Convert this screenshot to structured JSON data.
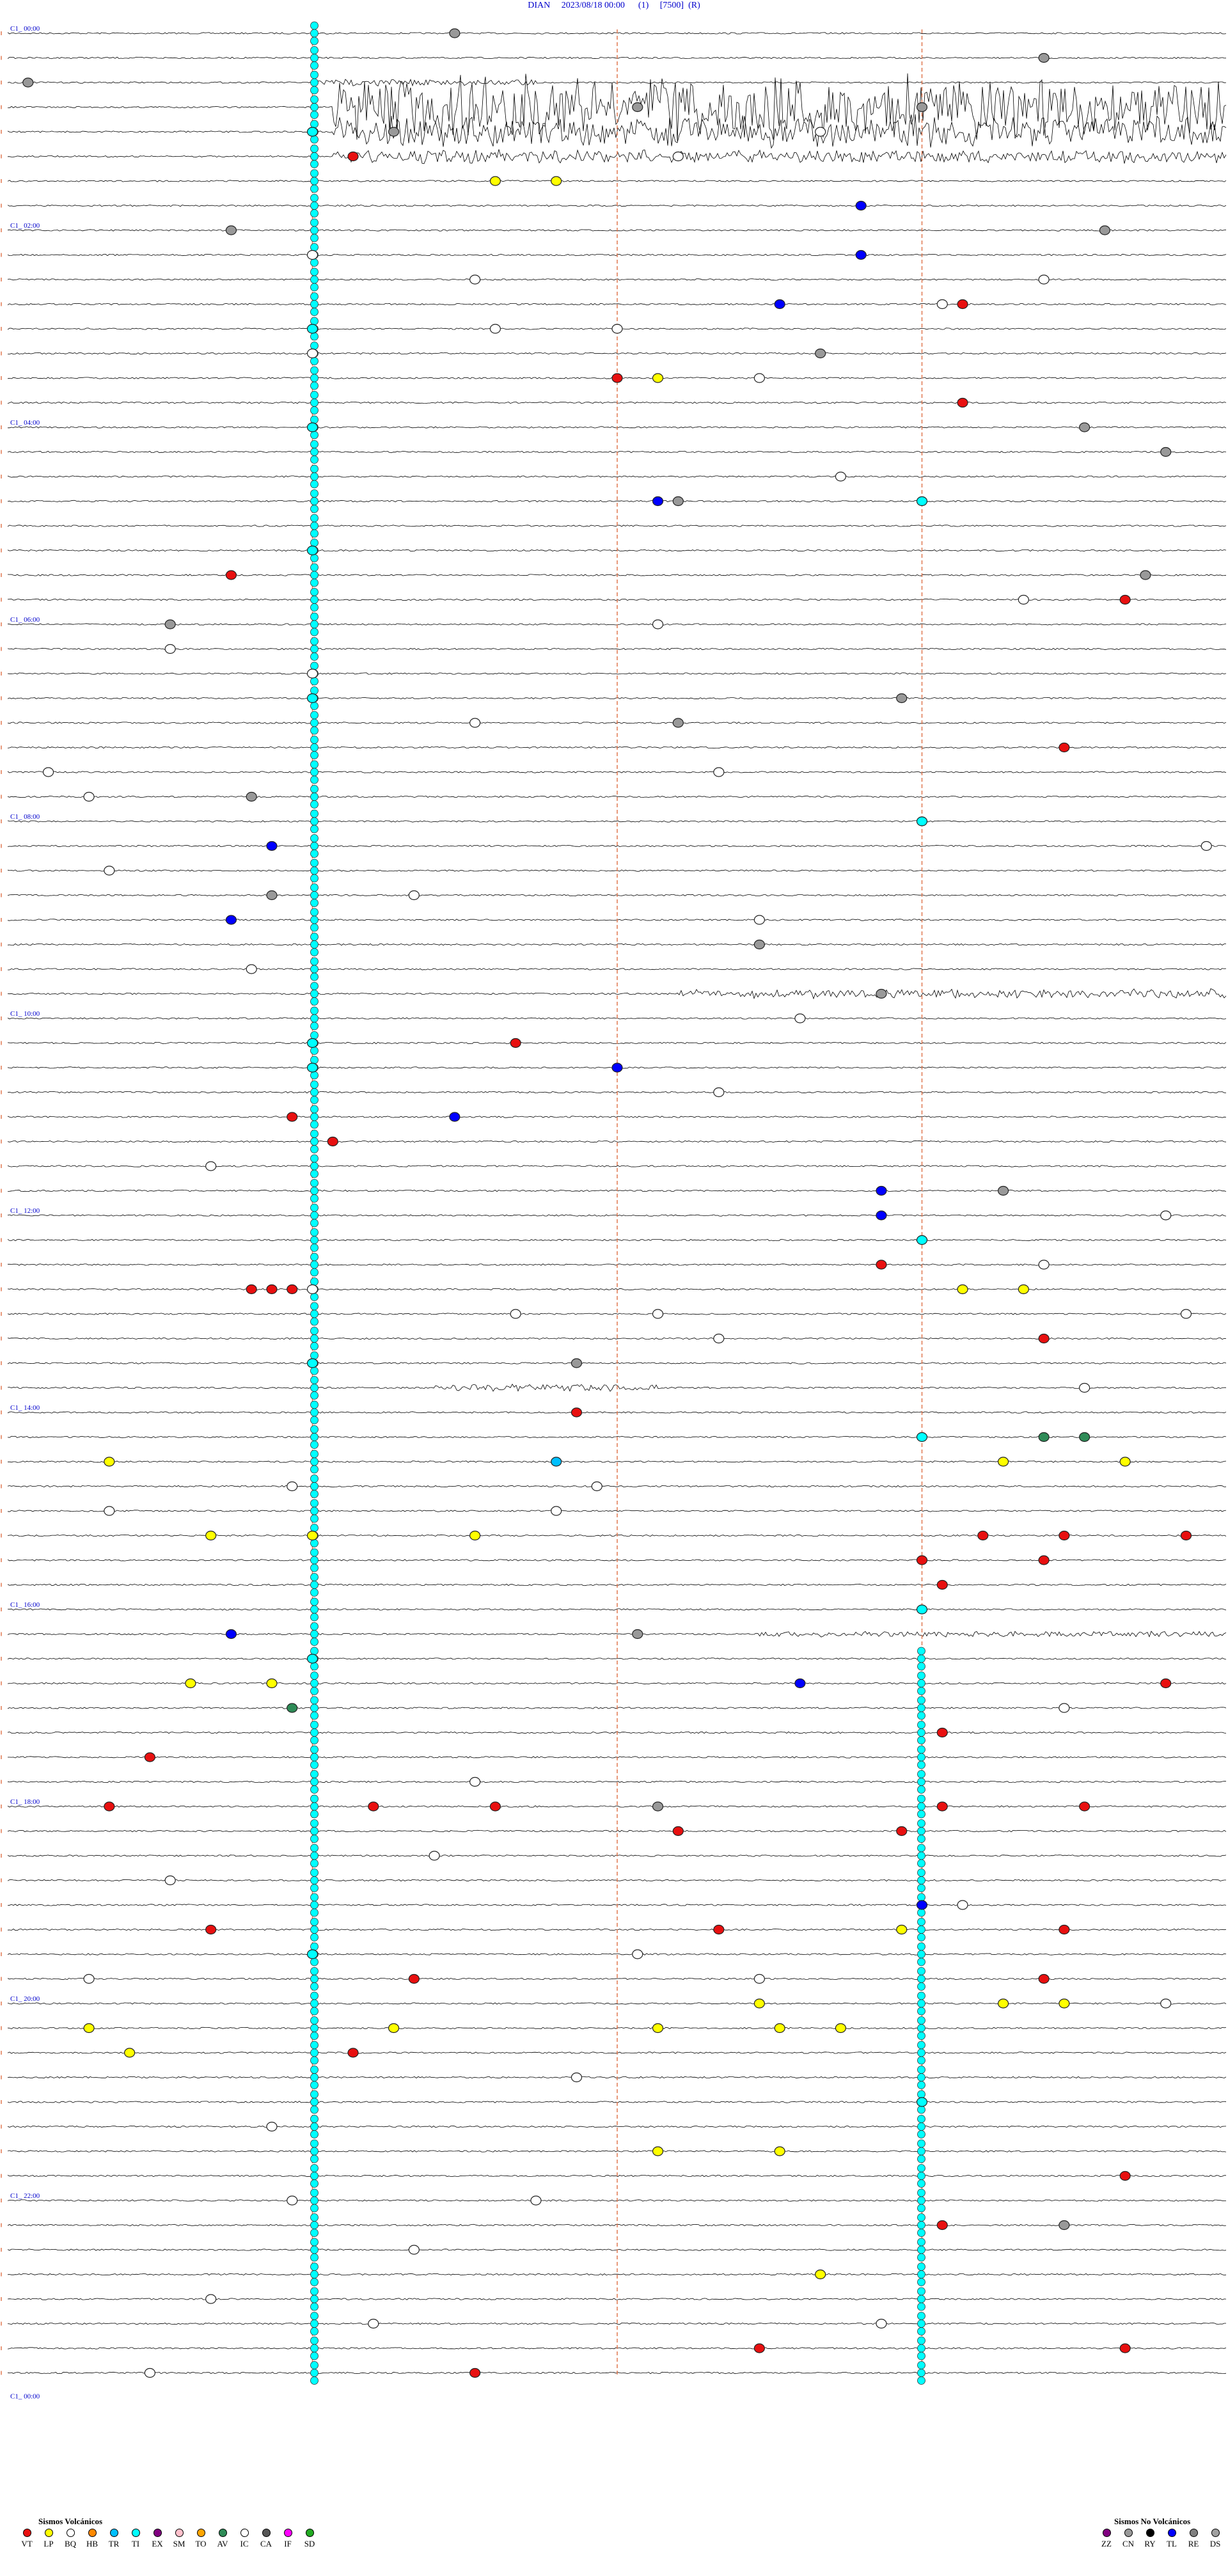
{
  "header": {
    "station": "DIAN",
    "datetime": "2023/08/18 00:00",
    "component": "(1)",
    "gain": "[7500]",
    "mode": "(R)"
  },
  "chart_data": {
    "type": "helicorder",
    "time_labels": [
      "00:00",
      "02:00",
      "04:00",
      "06:00",
      "08:00",
      "10:00",
      "12:00",
      "14:00",
      "16:00",
      "18:00",
      "20:00",
      "22:00",
      "00:00"
    ],
    "trace_rows": 96,
    "minute_markers": [
      15,
      30,
      45
    ],
    "colors": {
      "trace": "#000000",
      "marker_line": "#e07850",
      "label": "#0000cc",
      "events": {
        "VT": "#e81010",
        "LP": "#ffff00",
        "BQ": "#ffffff",
        "HB": "#ff8800",
        "TR": "#00bfff",
        "TI": "#00ffff",
        "EX": "#800080",
        "SM": "#ffc0cb",
        "TO": "#ffa500",
        "AV": "#2e8b57",
        "IC": "#ffffff",
        "CA": "#555555",
        "IF": "#ff00ff",
        "SD": "#22aa22",
        "ZZ": "#800080",
        "CN": "#999999",
        "RY": "#000000",
        "TL": "#0000ff",
        "RE": "#808080",
        "DS": "#a0a0a0"
      }
    },
    "events": [
      {
        "row": 0,
        "min": 22,
        "type": "CN"
      },
      {
        "row": 1,
        "min": 51,
        "type": "CN"
      },
      {
        "row": 2,
        "min": 1,
        "type": "CN"
      },
      {
        "row": 3,
        "min": 31,
        "type": "CN"
      },
      {
        "row": 3,
        "min": 45,
        "type": "CN"
      },
      {
        "row": 4,
        "min": 15,
        "type": "TI"
      },
      {
        "row": 4,
        "min": 19,
        "type": "CN"
      },
      {
        "row": 4,
        "min": 40,
        "type": "BQ"
      },
      {
        "row": 5,
        "min": 17,
        "type": "VT"
      },
      {
        "row": 5,
        "min": 33,
        "type": "BQ"
      },
      {
        "row": 6,
        "min": 24,
        "type": "LP"
      },
      {
        "row": 6,
        "min": 27,
        "type": "LP"
      },
      {
        "row": 7,
        "min": 42,
        "type": "TL"
      },
      {
        "row": 8,
        "min": 11,
        "type": "CN"
      },
      {
        "row": 8,
        "min": 54,
        "type": "CN"
      },
      {
        "row": 9,
        "min": 15,
        "type": "BQ"
      },
      {
        "row": 9,
        "min": 42,
        "type": "TL"
      },
      {
        "row": 10,
        "min": 23,
        "type": "BQ"
      },
      {
        "row": 10,
        "min": 51,
        "type": "BQ"
      },
      {
        "row": 11,
        "min": 38,
        "type": "TL"
      },
      {
        "row": 11,
        "min": 46,
        "type": "BQ"
      },
      {
        "row": 11,
        "min": 47,
        "type": "VT"
      },
      {
        "row": 12,
        "min": 15,
        "type": "TI"
      },
      {
        "row": 12,
        "min": 24,
        "type": "BQ"
      },
      {
        "row": 12,
        "min": 30,
        "type": "BQ"
      },
      {
        "row": 13,
        "min": 15,
        "type": "BQ"
      },
      {
        "row": 13,
        "min": 40,
        "type": "CN"
      },
      {
        "row": 14,
        "min": 30,
        "type": "VT"
      },
      {
        "row": 14,
        "min": 32,
        "type": "LP"
      },
      {
        "row": 14,
        "min": 37,
        "type": "BQ"
      },
      {
        "row": 15,
        "min": 47,
        "type": "VT"
      },
      {
        "row": 16,
        "min": 15,
        "type": "TI"
      },
      {
        "row": 16,
        "min": 53,
        "type": "CN"
      },
      {
        "row": 17,
        "min": 57,
        "type": "CN"
      },
      {
        "row": 18,
        "min": 41,
        "type": "BQ"
      },
      {
        "row": 19,
        "min": 32,
        "type": "TL"
      },
      {
        "row": 19,
        "min": 33,
        "type": "CN"
      },
      {
        "row": 19,
        "min": 45,
        "type": "TI"
      },
      {
        "row": 21,
        "min": 15,
        "type": "TI"
      },
      {
        "row": 22,
        "min": 11,
        "type": "VT"
      },
      {
        "row": 22,
        "min": 56,
        "type": "CN"
      },
      {
        "row": 23,
        "min": 50,
        "type": "BQ"
      },
      {
        "row": 23,
        "min": 55,
        "type": "VT"
      },
      {
        "row": 24,
        "min": 8,
        "type": "CN"
      },
      {
        "row": 24,
        "min": 32,
        "type": "BQ"
      },
      {
        "row": 25,
        "min": 8,
        "type": "BQ"
      },
      {
        "row": 26,
        "min": 15,
        "type": "BQ"
      },
      {
        "row": 27,
        "min": 15,
        "type": "TI"
      },
      {
        "row": 27,
        "min": 44,
        "type": "CN"
      },
      {
        "row": 28,
        "min": 23,
        "type": "BQ"
      },
      {
        "row": 28,
        "min": 33,
        "type": "CN"
      },
      {
        "row": 29,
        "min": 52,
        "type": "VT"
      },
      {
        "row": 30,
        "min": 2,
        "type": "BQ"
      },
      {
        "row": 30,
        "min": 35,
        "type": "BQ"
      },
      {
        "row": 31,
        "min": 4,
        "type": "BQ"
      },
      {
        "row": 31,
        "min": 12,
        "type": "CN"
      },
      {
        "row": 32,
        "min": 45,
        "type": "TI"
      },
      {
        "row": 33,
        "min": 13,
        "type": "TL"
      },
      {
        "row": 33,
        "min": 59,
        "type": "BQ"
      },
      {
        "row": 34,
        "min": 5,
        "type": "BQ"
      },
      {
        "row": 35,
        "min": 13,
        "type": "CN"
      },
      {
        "row": 35,
        "min": 20,
        "type": "BQ"
      },
      {
        "row": 36,
        "min": 11,
        "type": "TL"
      },
      {
        "row": 36,
        "min": 37,
        "type": "BQ"
      },
      {
        "row": 37,
        "min": 37,
        "type": "CN"
      },
      {
        "row": 38,
        "min": 12,
        "type": "BQ"
      },
      {
        "row": 39,
        "min": 43,
        "type": "CN"
      },
      {
        "row": 40,
        "min": 39,
        "type": "BQ"
      },
      {
        "row": 41,
        "min": 15,
        "type": "TI"
      },
      {
        "row": 41,
        "min": 25,
        "type": "VT"
      },
      {
        "row": 42,
        "min": 15,
        "type": "TI"
      },
      {
        "row": 42,
        "min": 30,
        "type": "TL"
      },
      {
        "row": 43,
        "min": 35,
        "type": "BQ"
      },
      {
        "row": 44,
        "min": 14,
        "type": "VT"
      },
      {
        "row": 44,
        "min": 22,
        "type": "TL"
      },
      {
        "row": 45,
        "min": 16,
        "type": "VT"
      },
      {
        "row": 46,
        "min": 10,
        "type": "BQ"
      },
      {
        "row": 47,
        "min": 43,
        "type": "TL"
      },
      {
        "row": 47,
        "min": 49,
        "type": "CN"
      },
      {
        "row": 48,
        "min": 43,
        "type": "TL"
      },
      {
        "row": 48,
        "min": 57,
        "type": "BQ"
      },
      {
        "row": 49,
        "min": 45,
        "type": "TI"
      },
      {
        "row": 50,
        "min": 43,
        "type": "VT"
      },
      {
        "row": 50,
        "min": 51,
        "type": "BQ"
      },
      {
        "row": 51,
        "min": 15,
        "type": "BQ"
      },
      {
        "row": 51,
        "min": 47,
        "type": "LP"
      },
      {
        "row": 51,
        "min": 50,
        "type": "LP"
      },
      {
        "row": 51,
        "min": 12,
        "type": "VT"
      },
      {
        "row": 51,
        "min": 13,
        "type": "VT"
      },
      {
        "row": 51,
        "min": 14,
        "type": "VT"
      },
      {
        "row": 52,
        "min": 25,
        "type": "BQ"
      },
      {
        "row": 52,
        "min": 32,
        "type": "BQ"
      },
      {
        "row": 52,
        "min": 58,
        "type": "BQ"
      },
      {
        "row": 53,
        "min": 51,
        "type": "VT"
      },
      {
        "row": 53,
        "min": 35,
        "type": "BQ"
      },
      {
        "row": 54,
        "min": 15,
        "type": "TI"
      },
      {
        "row": 54,
        "min": 28,
        "type": "CN"
      },
      {
        "row": 55,
        "min": 53,
        "type": "BQ"
      },
      {
        "row": 56,
        "min": 28,
        "type": "VT"
      },
      {
        "row": 57,
        "min": 45,
        "type": "TI"
      },
      {
        "row": 57,
        "min": 53,
        "type": "AV"
      },
      {
        "row": 57,
        "min": 51,
        "type": "AV"
      },
      {
        "row": 58,
        "min": 5,
        "type": "LP"
      },
      {
        "row": 58,
        "min": 27,
        "type": "TR"
      },
      {
        "row": 58,
        "min": 49,
        "type": "LP"
      },
      {
        "row": 58,
        "min": 55,
        "type": "LP"
      },
      {
        "row": 59,
        "min": 14,
        "type": "BQ"
      },
      {
        "row": 59,
        "min": 29,
        "type": "BQ"
      },
      {
        "row": 60,
        "min": 5,
        "type": "BQ"
      },
      {
        "row": 60,
        "min": 27,
        "type": "BQ"
      },
      {
        "row": 61,
        "min": 10,
        "type": "LP"
      },
      {
        "row": 61,
        "min": 15,
        "type": "LP"
      },
      {
        "row": 61,
        "min": 23,
        "type": "LP"
      },
      {
        "row": 61,
        "min": 48,
        "type": "VT"
      },
      {
        "row": 61,
        "min": 52,
        "type": "VT"
      },
      {
        "row": 61,
        "min": 58,
        "type": "VT"
      },
      {
        "row": 62,
        "min": 45,
        "type": "VT"
      },
      {
        "row": 62,
        "min": 51,
        "type": "VT"
      },
      {
        "row": 63,
        "min": 46,
        "type": "VT"
      },
      {
        "row": 64,
        "min": 45,
        "type": "TI"
      },
      {
        "row": 65,
        "min": 11,
        "type": "TL"
      },
      {
        "row": 65,
        "min": 31,
        "type": "CN"
      },
      {
        "row": 66,
        "min": 15,
        "type": "TI"
      },
      {
        "row": 67,
        "min": 9,
        "type": "LP"
      },
      {
        "row": 67,
        "min": 13,
        "type": "LP"
      },
      {
        "row": 67,
        "min": 39,
        "type": "TL"
      },
      {
        "row": 67,
        "min": 57,
        "type": "VT"
      },
      {
        "row": 68,
        "min": 14,
        "type": "AV"
      },
      {
        "row": 68,
        "min": 52,
        "type": "BQ"
      },
      {
        "row": 69,
        "min": 46,
        "type": "VT"
      },
      {
        "row": 70,
        "min": 7,
        "type": "VT"
      },
      {
        "row": 71,
        "min": 23,
        "type": "BQ"
      },
      {
        "row": 72,
        "min": 5,
        "type": "VT"
      },
      {
        "row": 72,
        "min": 18,
        "type": "VT"
      },
      {
        "row": 72,
        "min": 24,
        "type": "VT"
      },
      {
        "row": 72,
        "min": 32,
        "type": "CN"
      },
      {
        "row": 72,
        "min": 46,
        "type": "VT"
      },
      {
        "row": 72,
        "min": 53,
        "type": "VT"
      },
      {
        "row": 73,
        "min": 44,
        "type": "VT"
      },
      {
        "row": 73,
        "min": 33,
        "type": "VT"
      },
      {
        "row": 74,
        "min": 21,
        "type": "BQ"
      },
      {
        "row": 75,
        "min": 8,
        "type": "BQ"
      },
      {
        "row": 76,
        "min": 45,
        "type": "TL"
      },
      {
        "row": 76,
        "min": 47,
        "type": "BQ"
      },
      {
        "row": 77,
        "min": 10,
        "type": "VT"
      },
      {
        "row": 77,
        "min": 35,
        "type": "VT"
      },
      {
        "row": 77,
        "min": 52,
        "type": "VT"
      },
      {
        "row": 77,
        "min": 44,
        "type": "LP"
      },
      {
        "row": 78,
        "min": 15,
        "type": "TI"
      },
      {
        "row": 78,
        "min": 31,
        "type": "BQ"
      },
      {
        "row": 79,
        "min": 4,
        "type": "BQ"
      },
      {
        "row": 79,
        "min": 20,
        "type": "VT"
      },
      {
        "row": 79,
        "min": 37,
        "type": "BQ"
      },
      {
        "row": 79,
        "min": 51,
        "type": "VT"
      },
      {
        "row": 80,
        "min": 49,
        "type": "LP"
      },
      {
        "row": 80,
        "min": 52,
        "type": "LP"
      },
      {
        "row": 80,
        "min": 57,
        "type": "BQ"
      },
      {
        "row": 80,
        "min": 37,
        "type": "LP"
      },
      {
        "row": 81,
        "min": 19,
        "type": "LP"
      },
      {
        "row": 81,
        "min": 32,
        "type": "LP"
      },
      {
        "row": 81,
        "min": 38,
        "type": "LP"
      },
      {
        "row": 81,
        "min": 41,
        "type": "LP"
      },
      {
        "row": 81,
        "min": 4,
        "type": "LP"
      },
      {
        "row": 82,
        "min": 6,
        "type": "LP"
      },
      {
        "row": 82,
        "min": 17,
        "type": "VT"
      },
      {
        "row": 83,
        "min": 28,
        "type": "BQ"
      },
      {
        "row": 84,
        "min": 45,
        "type": "TI"
      },
      {
        "row": 85,
        "min": 13,
        "type": "BQ"
      },
      {
        "row": 86,
        "min": 32,
        "type": "LP"
      },
      {
        "row": 86,
        "min": 38,
        "type": "LP"
      },
      {
        "row": 87,
        "min": 55,
        "type": "VT"
      },
      {
        "row": 88,
        "min": 14,
        "type": "BQ"
      },
      {
        "row": 88,
        "min": 26,
        "type": "BQ"
      },
      {
        "row": 89,
        "min": 46,
        "type": "VT"
      },
      {
        "row": 89,
        "min": 52,
        "type": "CN"
      },
      {
        "row": 90,
        "min": 20,
        "type": "BQ"
      },
      {
        "row": 91,
        "min": 40,
        "type": "LP"
      },
      {
        "row": 92,
        "min": 10,
        "type": "BQ"
      },
      {
        "row": 93,
        "min": 18,
        "type": "BQ"
      },
      {
        "row": 93,
        "min": 43,
        "type": "BQ"
      },
      {
        "row": 94,
        "min": 37,
        "type": "VT"
      },
      {
        "row": 94,
        "min": 55,
        "type": "VT"
      },
      {
        "row": 95,
        "min": 23,
        "type": "VT"
      },
      {
        "row": 95,
        "min": 7,
        "type": "BQ"
      }
    ],
    "noisy_segments": [
      {
        "row": 2,
        "from": 15,
        "to": 26,
        "amp": 6
      },
      {
        "row": 3,
        "from": 16,
        "to": 60,
        "amp": 55
      },
      {
        "row": 4,
        "from": 16,
        "to": 60,
        "amp": 28
      },
      {
        "row": 5,
        "from": 16,
        "to": 60,
        "amp": 12
      },
      {
        "row": 39,
        "from": 33,
        "to": 60,
        "amp": 8
      },
      {
        "row": 55,
        "from": 21,
        "to": 32,
        "amp": 6
      },
      {
        "row": 65,
        "from": 37,
        "to": 60,
        "amp": 5
      }
    ]
  },
  "legend": {
    "volcanic_title": "Sismos Volcánicos",
    "volcanic_items": [
      "VT",
      "LP",
      "BQ",
      "HB",
      "TR",
      "TI",
      "EX",
      "SM",
      "TO",
      "AV",
      "IC",
      "CA",
      "IF",
      "SD"
    ],
    "nonvolcanic_title": "Sismos No Volcánicos",
    "nonvolcanic_items": [
      "ZZ",
      "CN",
      "RY",
      "TL",
      "RE",
      "DS"
    ]
  }
}
